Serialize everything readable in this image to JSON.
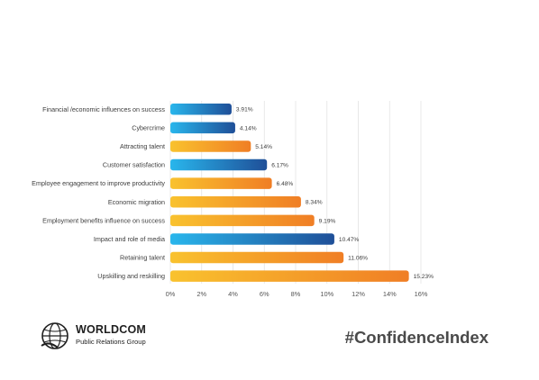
{
  "chart_data": {
    "type": "bar",
    "orientation": "horizontal",
    "categories": [
      "Financial /economic influences on success",
      "Cybercrime",
      "Attracting talent",
      "Customer satisfaction",
      "Employee engagement to improve productivity",
      "Economic migration",
      "Employment benefits influence on success",
      "Impact and role of media",
      "Retaining talent",
      "Upskilling and reskilling"
    ],
    "values": [
      3.91,
      4.14,
      5.14,
      6.17,
      6.48,
      8.34,
      9.19,
      10.47,
      11.06,
      15.23
    ],
    "value_labels": [
      "3.91%",
      "4.14%",
      "5.14%",
      "6.17%",
      "6.48%",
      "8.34%",
      "9.19%",
      "10.47%",
      "11.06%",
      "15.23%"
    ],
    "bar_colors": [
      "blue",
      "blue",
      "orange",
      "blue",
      "orange",
      "orange",
      "orange",
      "blue",
      "orange",
      "orange"
    ],
    "xlim": [
      0,
      16
    ],
    "ticks": [
      0,
      2,
      4,
      6,
      8,
      10,
      12,
      14,
      16
    ],
    "tick_labels": [
      "0%",
      "2%",
      "4%",
      "6%",
      "8%",
      "10%",
      "12%",
      "14%",
      "16%"
    ],
    "grid": true,
    "title": "",
    "xlabel": "",
    "ylabel": ""
  },
  "colors": {
    "blue_start": "#29b6ec",
    "blue_end": "#1f4f98",
    "orange_start": "#f9c22e",
    "orange_end": "#f07e25",
    "grid": "#e3e3e3"
  },
  "branding": {
    "name": "WORLDCOM",
    "subtitle": "Public Relations Group",
    "logo_icon": "globe-icon"
  },
  "hashtag": "#ConfidenceIndex"
}
